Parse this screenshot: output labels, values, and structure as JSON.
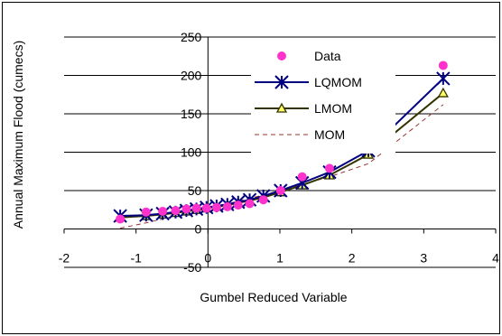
{
  "chart_data": {
    "type": "line",
    "title": "",
    "xlabel": "Gumbel Reduced Variable",
    "ylabel": "Annual Maximum Flood (cumecs)",
    "xlim": [
      -2,
      4
    ],
    "ylim": [
      -50,
      250
    ],
    "x_ticks": [
      "-2",
      "-1",
      "0",
      "1",
      "2",
      "3",
      "4"
    ],
    "y_ticks": [
      "-50",
      "0",
      "50",
      "100",
      "150",
      "200",
      "250"
    ],
    "x_tick_values": [
      -2,
      -1,
      0,
      1,
      2,
      3,
      4
    ],
    "y_tick_values": [
      -50,
      0,
      50,
      100,
      150,
      200,
      250
    ],
    "legend_position": "top-right, inside plot",
    "series": [
      {
        "name": "Data",
        "style": "markers",
        "marker": "circle",
        "color": "#ff33cc",
        "x": [
          -1.22,
          -0.86,
          -0.63,
          -0.45,
          -0.3,
          -0.16,
          -0.02,
          0.12,
          0.27,
          0.42,
          0.58,
          0.77,
          1.01,
          1.31,
          1.69,
          2.23,
          3.27
        ],
        "y": [
          13,
          22,
          23,
          24,
          26,
          27,
          27,
          28,
          29,
          31,
          33,
          38,
          50,
          68,
          79,
          111,
          213
        ]
      },
      {
        "name": "LQMOM",
        "style": "line+markers",
        "marker": "asterisk",
        "color": "#000080",
        "x": [
          -1.22,
          -0.86,
          -0.63,
          -0.45,
          -0.3,
          -0.16,
          -0.02,
          0.12,
          0.27,
          0.42,
          0.58,
          0.77,
          1.01,
          1.31,
          1.69,
          2.23,
          3.27
        ],
        "y": [
          17,
          18,
          20,
          22,
          24,
          26,
          28,
          30,
          32,
          35,
          38,
          43,
          50,
          60,
          74,
          102,
          196
        ]
      },
      {
        "name": "LMOM",
        "style": "line+markers",
        "marker": "triangle",
        "color": "#333300",
        "x": [
          -1.22,
          -0.86,
          -0.63,
          -0.45,
          -0.3,
          -0.16,
          -0.02,
          0.12,
          0.27,
          0.42,
          0.58,
          0.77,
          1.01,
          1.31,
          1.69,
          2.23,
          3.27
        ],
        "y": [
          15,
          17,
          19,
          21,
          23,
          25,
          27,
          29,
          31,
          34,
          37,
          41,
          48,
          57,
          70,
          97,
          177
        ]
      },
      {
        "name": "MOM",
        "style": "dashed-line",
        "marker": "none",
        "color": "#993333",
        "x": [
          -1.22,
          -0.86,
          -0.63,
          -0.45,
          -0.3,
          -0.16,
          -0.02,
          0.12,
          0.27,
          0.42,
          0.58,
          0.77,
          1.01,
          1.31,
          1.69,
          2.23,
          3.27
        ],
        "y": [
          1,
          8,
          13,
          17,
          20,
          23,
          26,
          30,
          33,
          36,
          40,
          44,
          50,
          58,
          68,
          85,
          162
        ]
      }
    ]
  }
}
